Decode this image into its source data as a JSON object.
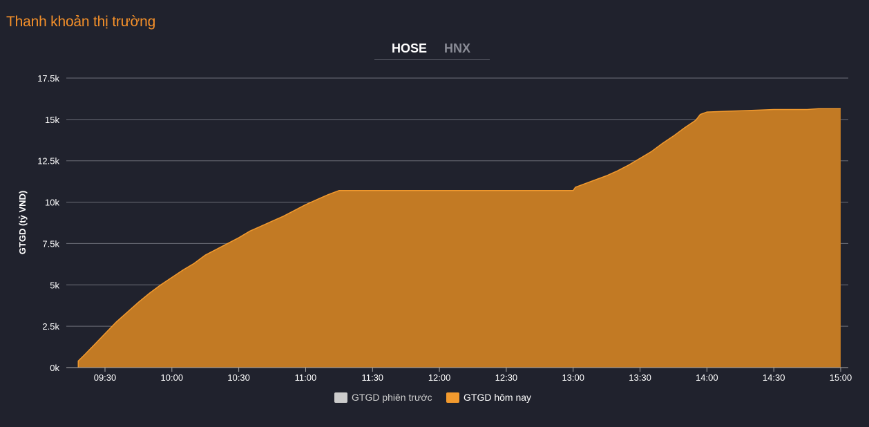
{
  "title": "Thanh khoản thị trường",
  "tabs": [
    {
      "label": "HOSE",
      "active": true
    },
    {
      "label": "HNX",
      "active": false
    }
  ],
  "colors": {
    "background": "#20222d",
    "accent": "#f4902a",
    "area_fill": "#c27a24",
    "area_line": "#f29a2e",
    "grid": "#6e707a",
    "text": "#ffffff",
    "legend_prev": "#cccccc",
    "legend_today": "#f29a2e"
  },
  "legend": [
    {
      "label": "GTGD phiên trước",
      "color": "#cccccc"
    },
    {
      "label": "GTGD hôm nay",
      "color": "#f29a2e"
    }
  ],
  "chart_data": {
    "type": "area",
    "title": "Thanh khoản thị trường",
    "xlabel": "",
    "ylabel": "GTGD (tỷ VND)",
    "ylim": [
      0,
      17500
    ],
    "yticks": [
      0,
      2500,
      5000,
      7500,
      10000,
      12500,
      15000,
      17500
    ],
    "ytick_labels": [
      "0k",
      "2.5k",
      "5k",
      "7.5k",
      "10k",
      "12.5k",
      "15k",
      "17.5k"
    ],
    "xticks": [
      "09:30",
      "10:00",
      "10:30",
      "11:00",
      "11:30",
      "12:00",
      "12:30",
      "13:00",
      "13:30",
      "14:00",
      "14:30",
      "15:00"
    ],
    "xlim": [
      "09:15",
      "15:00"
    ],
    "grid": true,
    "legend_position": "bottom",
    "series": [
      {
        "name": "GTGD phiên trước",
        "x": [],
        "values": []
      },
      {
        "name": "GTGD hôm nay",
        "x": [
          "09:18",
          "09:18",
          "09:21",
          "09:25",
          "09:30",
          "09:35",
          "09:40",
          "09:45",
          "09:50",
          "09:55",
          "10:00",
          "10:05",
          "10:10",
          "10:15",
          "10:20",
          "10:25",
          "10:30",
          "10:35",
          "10:40",
          "10:45",
          "10:50",
          "10:55",
          "11:00",
          "11:05",
          "11:10",
          "11:15",
          "11:20",
          "11:25",
          "11:30",
          "11:35",
          "11:40",
          "11:45",
          "11:50",
          "11:55",
          "12:00",
          "12:15",
          "12:30",
          "12:45",
          "13:00",
          "13:01",
          "13:05",
          "13:10",
          "13:15",
          "13:20",
          "13:25",
          "13:30",
          "13:35",
          "13:40",
          "13:45",
          "13:50",
          "13:55",
          "13:57",
          "14:00",
          "14:10",
          "14:20",
          "14:30",
          "14:40",
          "14:45",
          "14:50",
          "15:00"
        ],
        "values": [
          0,
          400,
          800,
          1350,
          2050,
          2750,
          3350,
          3950,
          4500,
          5000,
          5450,
          5900,
          6300,
          6800,
          7150,
          7500,
          7850,
          8250,
          8550,
          8850,
          9150,
          9500,
          9850,
          10150,
          10450,
          10700,
          10700,
          10700,
          10700,
          10700,
          10700,
          10700,
          10700,
          10700,
          10700,
          10700,
          10700,
          10700,
          10700,
          10900,
          11100,
          11350,
          11600,
          11900,
          12250,
          12650,
          13050,
          13550,
          14000,
          14500,
          14950,
          15300,
          15450,
          15500,
          15550,
          15600,
          15600,
          15600,
          15650,
          15650
        ]
      }
    ]
  }
}
